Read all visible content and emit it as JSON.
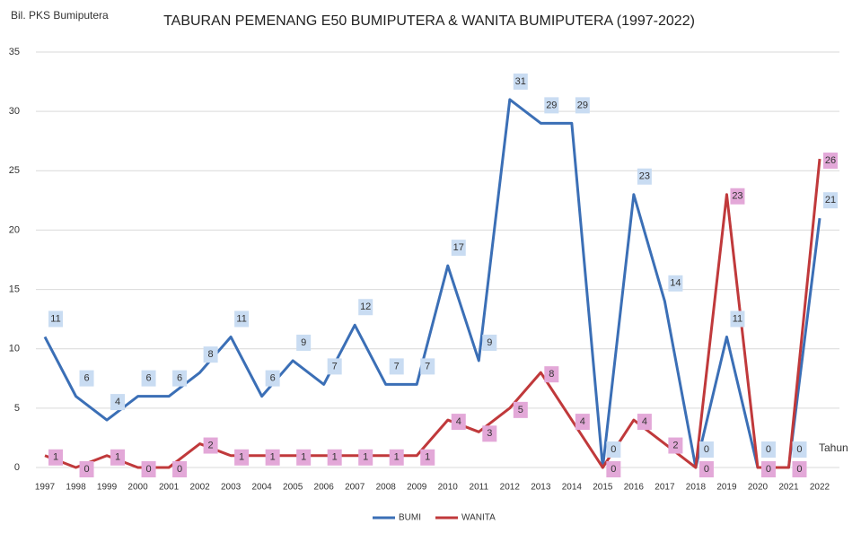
{
  "chart_data": {
    "type": "line",
    "title": "TABURAN PEMENANG E50 BUMIPUTERA & WANITA BUMIPUTERA (1997-2022)",
    "y_label": "Bil. PKS Bumiputera",
    "x_label": "Tahun",
    "categories": [
      "1997",
      "1998",
      "1999",
      "2000",
      "2001",
      "2002",
      "2003",
      "2004",
      "2005",
      "2006",
      "2007",
      "2008",
      "2009",
      "2010",
      "2011",
      "2012",
      "2013",
      "2014",
      "2015",
      "2016",
      "2017",
      "2018",
      "2019",
      "2020",
      "2021",
      "2022"
    ],
    "series": [
      {
        "name": "BUMI",
        "color": "#3b6fb6",
        "label_color": "#c9dcf2",
        "values": [
          11,
          6,
          4,
          6,
          6,
          8,
          11,
          6,
          9,
          7,
          12,
          7,
          7,
          17,
          9,
          31,
          29,
          29,
          0,
          23,
          14,
          0,
          11,
          0,
          0,
          21
        ]
      },
      {
        "name": "WANITA",
        "color": "#c0393b",
        "label_color": "#e3a8d8",
        "values": [
          1,
          0,
          1,
          0,
          0,
          2,
          1,
          1,
          1,
          1,
          1,
          1,
          1,
          4,
          3,
          5,
          8,
          4,
          0,
          4,
          2,
          0,
          23,
          0,
          0,
          26
        ]
      }
    ],
    "ylim": [
      0,
      35
    ],
    "yticks": [
      0,
      5,
      10,
      15,
      20,
      25,
      30,
      35
    ],
    "grid": true,
    "legend": "bottom"
  }
}
